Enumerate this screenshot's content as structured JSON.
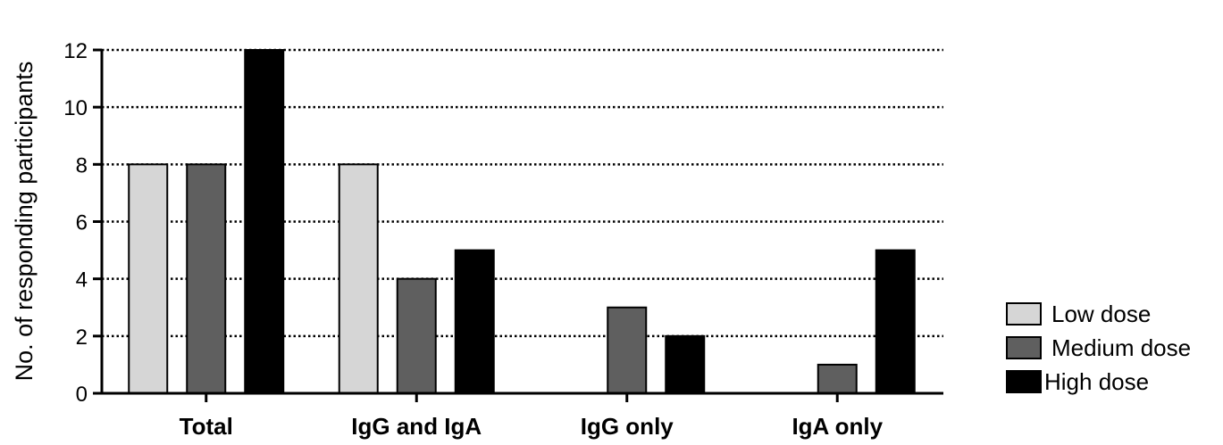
{
  "chart_data": {
    "type": "bar",
    "categories": [
      "Total",
      "IgG and IgA",
      "IgG only",
      "IgA only"
    ],
    "series": [
      {
        "name": "Low dose",
        "color": "#d6d6d6",
        "values": [
          8,
          8,
          0,
          0
        ]
      },
      {
        "name": "Medium dose",
        "color": "#5f5f5f",
        "values": [
          8,
          4,
          3,
          1
        ]
      },
      {
        "name": "High dose",
        "color": "#000000",
        "values": [
          12,
          5,
          2,
          5
        ]
      }
    ],
    "xlabel": "",
    "ylabel": "No. of responding participants",
    "ylim": [
      0,
      12
    ],
    "yticks": [
      0,
      2,
      4,
      6,
      8,
      10,
      12
    ],
    "grid": "horizontal dotted",
    "legend": "right"
  }
}
